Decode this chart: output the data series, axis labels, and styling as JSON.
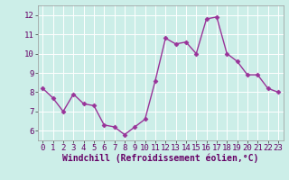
{
  "x": [
    0,
    1,
    2,
    3,
    4,
    5,
    6,
    7,
    8,
    9,
    10,
    11,
    12,
    13,
    14,
    15,
    16,
    17,
    18,
    19,
    20,
    21,
    22,
    23
  ],
  "y": [
    8.2,
    7.7,
    7.0,
    7.9,
    7.4,
    7.3,
    6.3,
    6.2,
    5.8,
    6.2,
    6.6,
    8.6,
    10.8,
    10.5,
    10.6,
    10.0,
    11.8,
    11.9,
    10.0,
    9.6,
    8.9,
    8.9,
    8.2,
    8.0
  ],
  "line_color": "#993399",
  "marker": "D",
  "marker_size": 2.5,
  "bg_color": "#cceee8",
  "grid_color": "#bbdddd",
  "xlabel": "Windchill (Refroidissement éolien,°C)",
  "xlim": [
    -0.5,
    23.5
  ],
  "ylim": [
    5.5,
    12.5
  ],
  "yticks": [
    6,
    7,
    8,
    9,
    10,
    11,
    12
  ],
  "xticks": [
    0,
    1,
    2,
    3,
    4,
    5,
    6,
    7,
    8,
    9,
    10,
    11,
    12,
    13,
    14,
    15,
    16,
    17,
    18,
    19,
    20,
    21,
    22,
    23
  ],
  "xlabel_fontsize": 7,
  "tick_fontsize": 6.5,
  "linewidth": 1.0,
  "spine_color": "#999999"
}
